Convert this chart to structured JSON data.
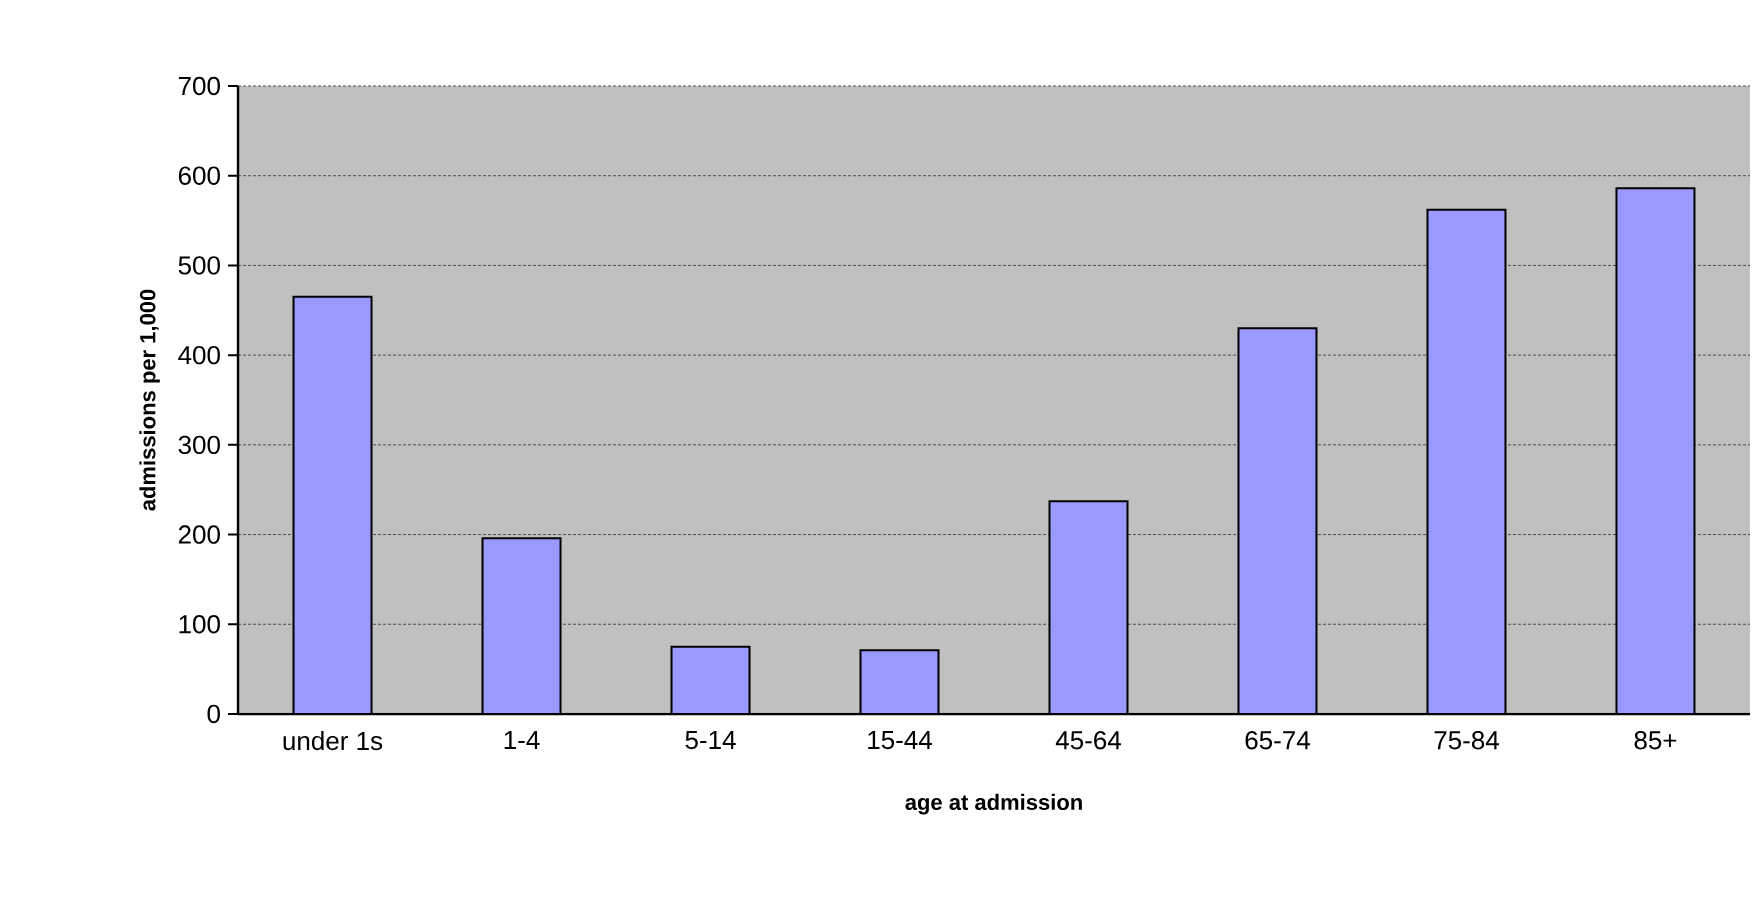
{
  "chart_data": {
    "type": "bar",
    "xlabel": "age at admission",
    "ylabel": "admissions per 1,000",
    "categories": [
      "under 1s",
      "1-4",
      "5-14",
      "15-44",
      "45-64",
      "65-74",
      "75-84",
      "85+"
    ],
    "values": [
      465,
      196,
      75,
      71,
      237,
      430,
      562,
      586
    ],
    "color": "#9999ff",
    "ylim": [
      0,
      700
    ],
    "yticks": [
      0,
      100,
      200,
      300,
      400,
      500,
      600,
      700
    ],
    "grid": "y"
  }
}
